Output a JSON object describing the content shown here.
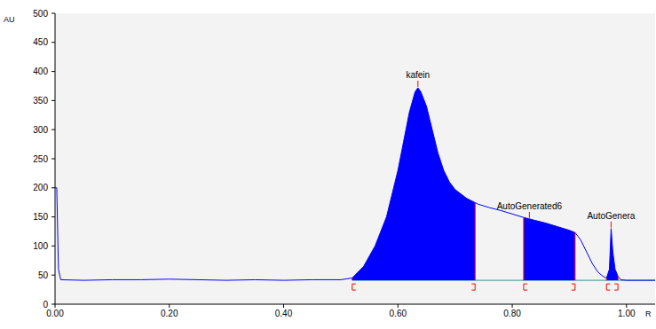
{
  "chart_data": {
    "type": "area",
    "ylabel": "AU",
    "xlabel": "R",
    "color": "#0000ff",
    "grid": false,
    "xlim": [
      0,
      1.05
    ],
    "ylim": [
      0,
      500
    ],
    "xticks": [
      {
        "value": 0,
        "label": "0.00"
      },
      {
        "value": 0.2,
        "label": "0.20"
      },
      {
        "value": 0.4,
        "label": "0.40"
      },
      {
        "value": 0.6,
        "label": "0.60"
      },
      {
        "value": 0.8,
        "label": "0.80"
      },
      {
        "value": 1,
        "label": "1.00"
      }
    ],
    "yticks": [
      0,
      50,
      100,
      150,
      200,
      250,
      300,
      350,
      400,
      450,
      500
    ],
    "x": [
      0,
      0.003,
      0.006,
      0.01,
      0.05,
      0.1,
      0.15,
      0.2,
      0.25,
      0.3,
      0.35,
      0.4,
      0.45,
      0.5,
      0.52,
      0.54,
      0.56,
      0.58,
      0.6,
      0.61,
      0.62,
      0.63,
      0.635,
      0.64,
      0.65,
      0.66,
      0.67,
      0.68,
      0.69,
      0.7,
      0.72,
      0.74,
      0.76,
      0.78,
      0.8,
      0.82,
      0.84,
      0.86,
      0.88,
      0.9,
      0.91,
      0.92,
      0.93,
      0.94,
      0.95,
      0.96,
      0.965,
      0.97,
      0.973,
      0.976,
      0.98,
      0.985,
      0.99,
      1.0,
      1.05
    ],
    "values": [
      200,
      200,
      60,
      42,
      41,
      42,
      42,
      43,
      42,
      41,
      42,
      41,
      42,
      42,
      45,
      65,
      100,
      150,
      230,
      280,
      330,
      365,
      372,
      365,
      340,
      300,
      260,
      230,
      210,
      197,
      182,
      172,
      166,
      161,
      155,
      149,
      144,
      139,
      133,
      127,
      123,
      110,
      90,
      70,
      55,
      47,
      45,
      60,
      130,
      90,
      60,
      48,
      42,
      41,
      41
    ],
    "baseline": 41,
    "peaks": [
      {
        "name": "kafein",
        "start": 0.52,
        "end": 0.735,
        "apex": 0.635
      },
      {
        "name": "AutoGenerated6",
        "start": 0.82,
        "end": 0.91,
        "apex": 0.83
      },
      {
        "name": "AutoGenera",
        "start": 0.965,
        "end": 0.985,
        "apex": 0.973
      }
    ]
  }
}
